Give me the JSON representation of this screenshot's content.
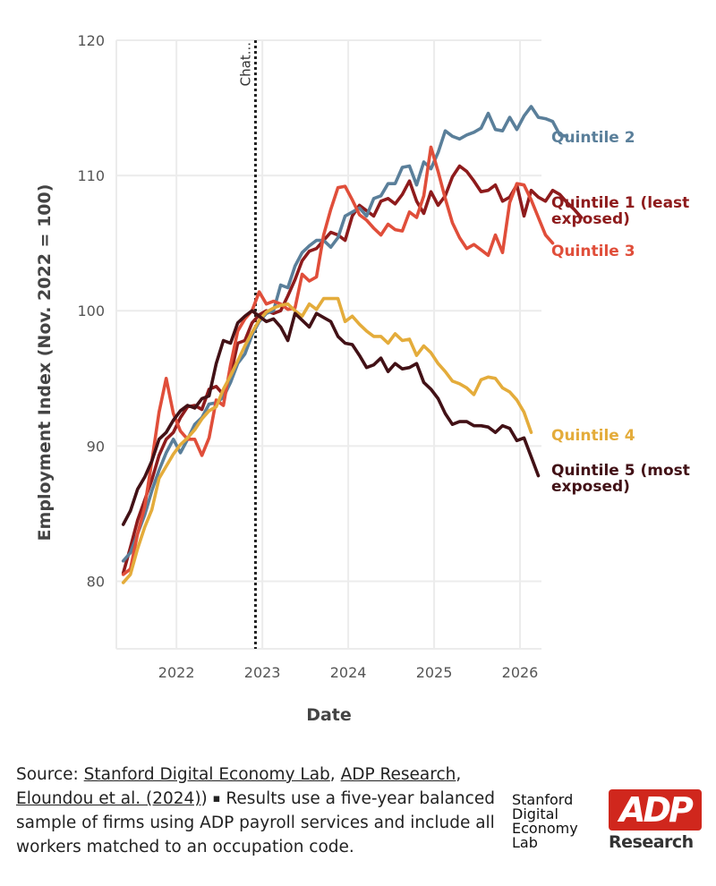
{
  "chart_data": {
    "type": "line",
    "xlabel": "Date",
    "ylabel": "Employment Index (Nov. 2022 = 100)",
    "xlim": [
      2021.3,
      2026.25
    ],
    "ylim": [
      75,
      120
    ],
    "x_ticks": [
      2022,
      2023,
      2024,
      2025,
      2026
    ],
    "y_ticks": [
      80,
      90,
      100,
      110,
      120
    ],
    "grid": true,
    "legend": "direct labels at line ends (right)",
    "annotation": {
      "label": "Chat...",
      "x": 2022.92,
      "style": "dotted vertical line"
    },
    "x_start": 2021.38,
    "x_step_months": 1,
    "series": [
      {
        "name": "Quintile 1 (least exposed)",
        "color": "#8e1b1c",
        "values": [
          80.6,
          82.5,
          84.5,
          86.0,
          87.5,
          89.3,
          90.5,
          91.0,
          92.1,
          92.9,
          93.0,
          92.7,
          94.2,
          94.4,
          93.8,
          95.2,
          97.6,
          97.8,
          99.1,
          99.7,
          100.0,
          99.8,
          100.0,
          101.1,
          102.3,
          103.7,
          104.4,
          104.6,
          105.2,
          105.8,
          105.6,
          105.2,
          107.0,
          107.8,
          107.4,
          107.0,
          108.1,
          108.3,
          107.9,
          108.6,
          109.6,
          108.1,
          107.2,
          108.8,
          107.8,
          108.5,
          109.9,
          110.7,
          110.3,
          109.6,
          108.8,
          108.9,
          109.3,
          108.1,
          108.4,
          109.3,
          107.0,
          108.9,
          108.4,
          108.1,
          108.9,
          108.6,
          108.0,
          107.5,
          106.9
        ]
      },
      {
        "name": "Quintile 2",
        "color": "#5a7f9a",
        "values": [
          81.5,
          82.1,
          83.5,
          84.9,
          86.7,
          88.2,
          89.5,
          90.5,
          89.5,
          90.5,
          91.6,
          92.1,
          93.1,
          93.2,
          93.6,
          94.7,
          96.1,
          96.8,
          98.2,
          99.2,
          99.8,
          100.0,
          101.9,
          101.7,
          103.3,
          104.3,
          104.8,
          105.2,
          105.2,
          104.7,
          105.4,
          107.0,
          107.3,
          107.6,
          107.0,
          108.3,
          108.5,
          109.4,
          109.4,
          110.6,
          110.7,
          109.3,
          111.0,
          110.5,
          111.7,
          113.3,
          112.9,
          112.7,
          113.0,
          113.2,
          113.5,
          114.6,
          113.4,
          113.3,
          114.3,
          113.4,
          114.4,
          115.1,
          114.3,
          114.2,
          114.0,
          113.0,
          112.9
        ]
      },
      {
        "name": "Quintile 3",
        "color": "#e04e3a",
        "values": [
          80.5,
          80.9,
          83.5,
          85.5,
          88.9,
          92.5,
          95.0,
          92.4,
          91.1,
          90.5,
          90.5,
          89.3,
          90.6,
          93.4,
          93.0,
          96.0,
          98.5,
          99.4,
          100.0,
          101.4,
          100.5,
          100.7,
          100.5,
          100.1,
          100.2,
          102.7,
          102.2,
          102.5,
          105.6,
          107.5,
          109.1,
          109.2,
          108.2,
          107.1,
          106.7,
          106.1,
          105.6,
          106.4,
          106.0,
          105.9,
          107.3,
          106.9,
          108.5,
          112.1,
          110.3,
          108.3,
          106.5,
          105.4,
          104.6,
          104.9,
          104.5,
          104.1,
          105.6,
          104.3,
          108.0,
          109.4,
          109.3,
          108.2,
          106.9,
          105.6,
          105.0
        ]
      },
      {
        "name": "Quintile 4",
        "color": "#e4ac3b",
        "values": [
          79.9,
          80.5,
          82.4,
          84.0,
          85.3,
          87.6,
          88.5,
          89.4,
          90.1,
          90.6,
          91.2,
          92.0,
          92.6,
          92.9,
          94.2,
          95.2,
          96.3,
          97.4,
          98.4,
          99.3,
          99.9,
          100.2,
          100.4,
          100.5,
          100.0,
          99.6,
          100.5,
          100.1,
          100.9,
          100.9,
          100.9,
          99.2,
          99.6,
          99.0,
          98.5,
          98.1,
          98.1,
          97.6,
          98.3,
          97.8,
          97.9,
          96.7,
          97.4,
          96.9,
          96.1,
          95.5,
          94.8,
          94.6,
          94.3,
          93.8,
          94.9,
          95.1,
          95.0,
          94.3,
          94.0,
          93.4,
          92.5,
          91.0
        ]
      },
      {
        "name": "Quintile 5 (most exposed)",
        "color": "#421116",
        "values": [
          84.2,
          85.2,
          86.8,
          87.7,
          88.9,
          90.5,
          91.0,
          91.9,
          92.6,
          93.0,
          92.8,
          93.5,
          93.7,
          96.1,
          97.8,
          97.6,
          99.1,
          99.6,
          100.0,
          99.6,
          99.2,
          99.4,
          98.8,
          97.8,
          99.8,
          99.3,
          98.8,
          99.8,
          99.5,
          99.2,
          98.1,
          97.6,
          97.5,
          96.7,
          95.8,
          96.0,
          96.5,
          95.5,
          96.1,
          95.7,
          95.8,
          96.1,
          94.7,
          94.2,
          93.5,
          92.4,
          91.6,
          91.8,
          91.8,
          91.5,
          91.5,
          91.4,
          91.0,
          91.5,
          91.3,
          90.4,
          90.6,
          89.2,
          87.8
        ]
      }
    ]
  },
  "footer": {
    "source_prefix": "Source: ",
    "link1": "Stanford Digital Economy Lab",
    "comma1": ", ",
    "link2": "ADP Research",
    "comma2": ",",
    "link3": "Eloundou et al. (2024)",
    "paren": ")",
    "sep": "▪",
    "note": " Results use a five-year balanced sample of firms using ADP payroll services and include all workers matched to an occupation code."
  },
  "logos": {
    "stanford_lines": [
      "Stanford",
      "Digital",
      "Economy",
      "Lab"
    ],
    "adp_mark": "ADP",
    "adp_word": "Research",
    "adp_color": "#d0271d"
  }
}
